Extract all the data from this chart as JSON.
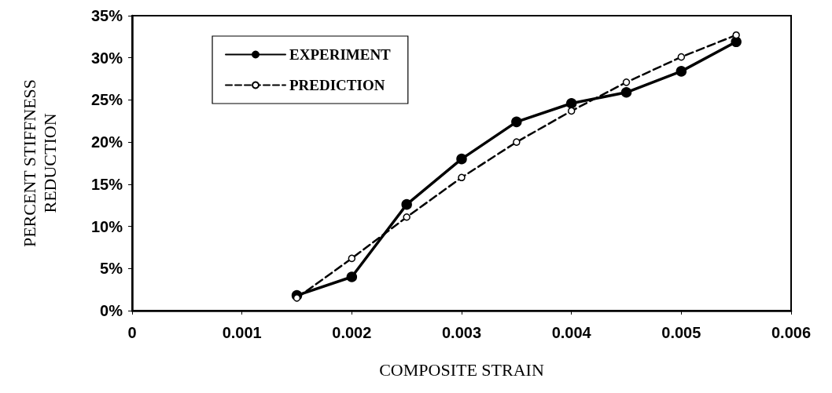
{
  "chart_data": {
    "type": "line",
    "xlabel": "COMPOSITE STRAIN",
    "ylabel": "PERCENT STIFFNESS\nREDUCTION",
    "x": [
      0.0015,
      0.002,
      0.0025,
      0.003,
      0.0035,
      0.004,
      0.0045,
      0.005,
      0.0055
    ],
    "series": [
      {
        "name": "EXPERIMENT",
        "color": "#000000",
        "line_style": "solid",
        "values": [
          1.8,
          4.0,
          12.6,
          18.0,
          22.4,
          24.6,
          25.9,
          28.4,
          31.9
        ]
      },
      {
        "name": "PREDICTION",
        "color": "#000000",
        "line_style": "dashed",
        "values": [
          1.5,
          6.2,
          11.1,
          15.8,
          20.0,
          23.7,
          27.1,
          30.1,
          32.7
        ]
      }
    ],
    "xlim": [
      0,
      0.006
    ],
    "xticks": [
      0,
      0.001,
      0.002,
      0.003,
      0.004,
      0.005,
      0.006
    ],
    "ylim": [
      0,
      35
    ],
    "yticks": [
      {
        "value": 0,
        "label": "0%"
      },
      {
        "value": 5,
        "label": "5%"
      },
      {
        "value": 10,
        "label": "10%"
      },
      {
        "value": 15,
        "label": "15%"
      },
      {
        "value": 20,
        "label": "20%"
      },
      {
        "value": 25,
        "label": "25%"
      },
      {
        "value": 30,
        "label": "30%"
      },
      {
        "value": 35,
        "label": "35%"
      }
    ],
    "grid": false,
    "legend": "top left",
    "marker": "circle"
  }
}
